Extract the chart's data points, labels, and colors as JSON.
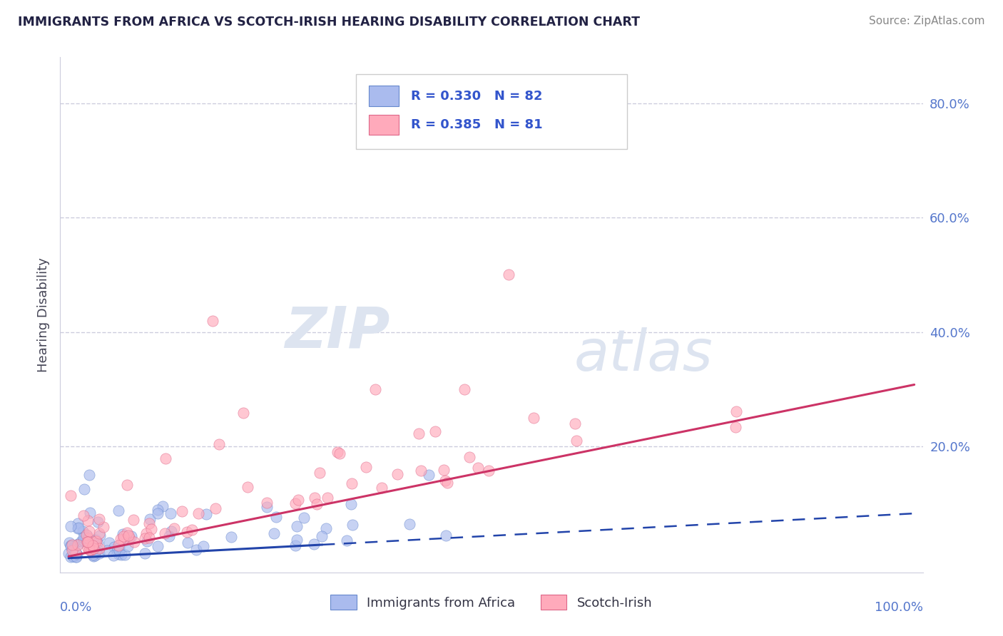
{
  "title": "IMMIGRANTS FROM AFRICA VS SCOTCH-IRISH HEARING DISABILITY CORRELATION CHART",
  "source": "Source: ZipAtlas.com",
  "ylabel": "Hearing Disability",
  "africa_color": "#aabbee",
  "africa_edge_color": "#6688cc",
  "scotch_color": "#ffaabb",
  "scotch_edge_color": "#dd6688",
  "africa_line_color": "#2244aa",
  "scotch_line_color": "#cc3366",
  "background_color": "#ffffff",
  "grid_color": "#ccccdd",
  "tick_color": "#5577cc",
  "title_color": "#222244",
  "source_color": "#888888",
  "watermark_color": "#dde4f0",
  "legend_text_color": "#3355cc",
  "legend_n_color": "#222244",
  "africa_R": "0.330",
  "africa_N": "82",
  "scotch_R": "0.385",
  "scotch_N": "81",
  "legend_bottom_africa": "Immigrants from Africa",
  "legend_bottom_scotch": "Scotch-Irish"
}
